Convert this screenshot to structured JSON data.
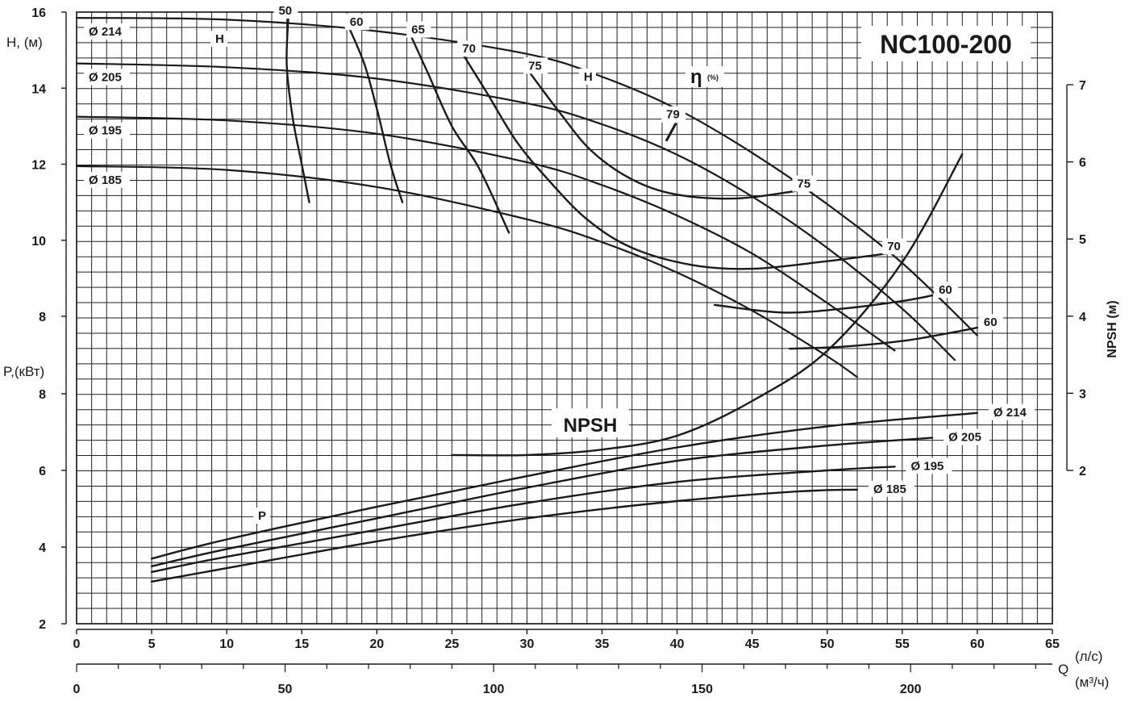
{
  "chart_data": {
    "type": "line",
    "title": "NC100-200",
    "x_axis": {
      "label": "Q",
      "unit_primary": "(л/с)",
      "unit_secondary": "(м³/ч)",
      "range": [
        0,
        65
      ],
      "ticks": [
        0,
        5,
        10,
        15,
        20,
        25,
        30,
        35,
        40,
        45,
        50,
        55,
        60,
        65
      ],
      "secondary_ticks": [
        0,
        50,
        100,
        150,
        200
      ],
      "secondary_range_m3h": [
        0,
        234
      ]
    },
    "head_axis": {
      "label": "H, (м)",
      "range": [
        8,
        16
      ],
      "ticks": [
        8,
        10,
        12,
        14,
        16
      ]
    },
    "power_axis": {
      "label": "P,(кВт)",
      "range": [
        2,
        8
      ],
      "ticks": [
        2,
        4,
        6,
        8
      ]
    },
    "npsh_axis": {
      "label": "NPSH (м)",
      "range": [
        2,
        7
      ],
      "ticks": [
        2,
        3,
        4,
        5,
        6,
        7
      ]
    },
    "head_curves": [
      {
        "name": "Ø 214",
        "points": [
          [
            0,
            15.85
          ],
          [
            10,
            15.8
          ],
          [
            20,
            15.5
          ],
          [
            30,
            14.9
          ],
          [
            35,
            14.3
          ],
          [
            40,
            13.45
          ],
          [
            45,
            12.3
          ],
          [
            50,
            10.95
          ],
          [
            55,
            9.4
          ],
          [
            60,
            7.5
          ]
        ]
      },
      {
        "name": "Ø 205",
        "points": [
          [
            0,
            14.65
          ],
          [
            10,
            14.55
          ],
          [
            20,
            14.25
          ],
          [
            30,
            13.6
          ],
          [
            35,
            13.05
          ],
          [
            40,
            12.25
          ],
          [
            45,
            11.15
          ],
          [
            50,
            9.8
          ],
          [
            55,
            8.2
          ],
          [
            58.5,
            6.85
          ]
        ]
      },
      {
        "name": "Ø 195",
        "points": [
          [
            0,
            13.25
          ],
          [
            10,
            13.15
          ],
          [
            20,
            12.8
          ],
          [
            30,
            12.05
          ],
          [
            35,
            11.45
          ],
          [
            40,
            10.65
          ],
          [
            45,
            9.65
          ],
          [
            50,
            8.35
          ],
          [
            54.5,
            7.1
          ]
        ]
      },
      {
        "name": "Ø 185",
        "points": [
          [
            0,
            11.95
          ],
          [
            10,
            11.85
          ],
          [
            20,
            11.4
          ],
          [
            30,
            10.55
          ],
          [
            35,
            9.95
          ],
          [
            40,
            9.15
          ],
          [
            45,
            8.15
          ],
          [
            50,
            6.95
          ],
          [
            52,
            6.4
          ]
        ]
      }
    ],
    "efficiency_curves": [
      {
        "label": "50",
        "points": [
          [
            14.1,
            15.85
          ],
          [
            14.0,
            14.6
          ],
          [
            14.4,
            13.2
          ],
          [
            15.0,
            12.0
          ],
          [
            15.5,
            11.0
          ]
        ]
      },
      {
        "label": "60",
        "points": [
          [
            18.2,
            15.55
          ],
          [
            19.2,
            14.6
          ],
          [
            20.1,
            13.3
          ],
          [
            20.9,
            12.0
          ],
          [
            21.7,
            11.0
          ]
        ]
      },
      {
        "label": "65",
        "points": [
          [
            22.3,
            15.35
          ],
          [
            23.4,
            14.4
          ],
          [
            25.0,
            13.0
          ],
          [
            26.8,
            11.9
          ],
          [
            28.8,
            10.2
          ]
        ]
      },
      {
        "label": "70",
        "points": [
          [
            25.8,
            14.85
          ],
          [
            27.3,
            13.9
          ],
          [
            29.3,
            12.6
          ],
          [
            31.4,
            11.6
          ],
          [
            34.0,
            10.55
          ],
          [
            37.0,
            9.8
          ],
          [
            41.0,
            9.35
          ],
          [
            45.0,
            9.25
          ],
          [
            50.0,
            9.45
          ],
          [
            54.0,
            9.65
          ]
        ]
      },
      {
        "label": "75",
        "points": [
          [
            30.2,
            14.4
          ],
          [
            32.2,
            13.35
          ],
          [
            34.3,
            12.35
          ],
          [
            37.0,
            11.6
          ],
          [
            40.0,
            11.2
          ],
          [
            44.0,
            11.1
          ],
          [
            48.0,
            11.3
          ]
        ]
      },
      {
        "label": "60",
        "points": [
          [
            42.5,
            8.3
          ],
          [
            47.0,
            8.1
          ],
          [
            51.0,
            8.2
          ],
          [
            55.0,
            8.4
          ],
          [
            57.0,
            8.55
          ]
        ]
      },
      {
        "label": "60",
        "points": [
          [
            47.5,
            7.15
          ],
          [
            51.0,
            7.2
          ],
          [
            55.0,
            7.35
          ],
          [
            58.0,
            7.55
          ],
          [
            60.0,
            7.7
          ]
        ]
      }
    ],
    "efficiency_markers": [
      {
        "label": "79",
        "at": [
          39.6,
          12.95
        ]
      }
    ],
    "power_curves": [
      {
        "name": "Ø 214",
        "points": [
          [
            5,
            3.7
          ],
          [
            10,
            4.2
          ],
          [
            20,
            5.05
          ],
          [
            30,
            5.85
          ],
          [
            40,
            6.6
          ],
          [
            50,
            7.15
          ],
          [
            60,
            7.5
          ]
        ]
      },
      {
        "name": "Ø 205",
        "points": [
          [
            5,
            3.5
          ],
          [
            10,
            3.95
          ],
          [
            20,
            4.75
          ],
          [
            30,
            5.55
          ],
          [
            40,
            6.25
          ],
          [
            50,
            6.65
          ],
          [
            57,
            6.85
          ]
        ]
      },
      {
        "name": "Ø 195",
        "points": [
          [
            5,
            3.35
          ],
          [
            10,
            3.75
          ],
          [
            20,
            4.45
          ],
          [
            30,
            5.15
          ],
          [
            40,
            5.7
          ],
          [
            50,
            6.0
          ],
          [
            54.5,
            6.1
          ]
        ]
      },
      {
        "name": "Ø 185",
        "points": [
          [
            5,
            3.1
          ],
          [
            10,
            3.45
          ],
          [
            20,
            4.15
          ],
          [
            30,
            4.75
          ],
          [
            40,
            5.2
          ],
          [
            48,
            5.45
          ],
          [
            52,
            5.5
          ]
        ]
      }
    ],
    "npsh_curve": {
      "name": "NPSH",
      "points": [
        [
          25,
          2.2
        ],
        [
          30,
          2.2
        ],
        [
          35,
          2.27
        ],
        [
          40,
          2.45
        ],
        [
          45,
          2.9
        ],
        [
          50,
          3.55
        ],
        [
          55,
          4.7
        ],
        [
          59,
          6.1
        ]
      ]
    },
    "annotations": {
      "head_series_label": "H",
      "efficiency_series_label": "η",
      "efficiency_unit": "(%)",
      "power_series_label": "P",
      "npsh_series_label": "NPSH"
    },
    "grid": true,
    "line_color": "#1a1a1a",
    "background": "#ffffff"
  }
}
